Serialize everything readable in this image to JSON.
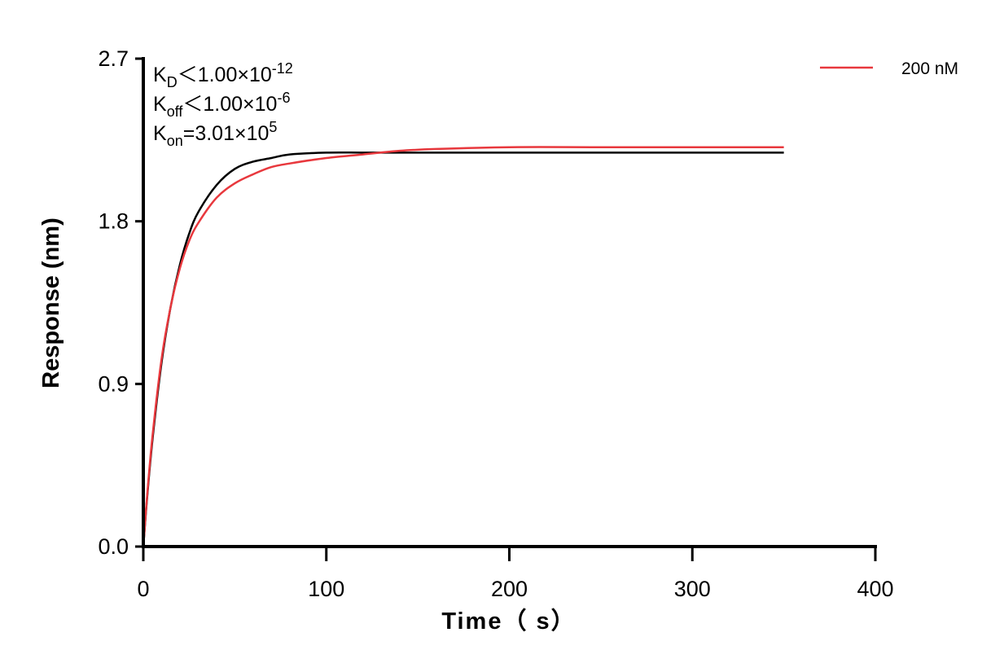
{
  "chart_data": {
    "type": "line",
    "title": "",
    "xlabel": "Time（ s）",
    "ylabel": "Response (nm)",
    "xlim": [
      0,
      400
    ],
    "ylim": [
      0,
      2.7
    ],
    "xticks": [
      "0",
      "100",
      "200",
      "300",
      "400"
    ],
    "yticks": [
      "0.0",
      "0.9",
      "1.8",
      "2.7"
    ],
    "grid": false,
    "legend_position": "top-right",
    "annotations": [
      {
        "main": "K",
        "sub": "D",
        "rest": "＜1.00×10",
        "sup": "-12"
      },
      {
        "main": "K",
        "sub": "off",
        "rest": "＜1.00×10",
        "sup": "-6"
      },
      {
        "main": "K",
        "sub": "on",
        "rest": "=3.01×10",
        "sup": "5"
      }
    ],
    "series": [
      {
        "name": "200 nM",
        "color": "#e8383d",
        "x": [
          0,
          2,
          5,
          10,
          15,
          20,
          25,
          30,
          40,
          50,
          60,
          70,
          80,
          100,
          120,
          140,
          160,
          200,
          250,
          300,
          350
        ],
        "y": [
          0,
          0.27,
          0.61,
          1.04,
          1.33,
          1.54,
          1.69,
          1.79,
          1.93,
          2.01,
          2.06,
          2.1,
          2.12,
          2.15,
          2.17,
          2.19,
          2.2,
          2.21,
          2.21,
          2.21,
          2.21
        ]
      },
      {
        "color": "#000000",
        "x": [
          0,
          2,
          5,
          10,
          15,
          20,
          25,
          30,
          40,
          50,
          60,
          70,
          80,
          100,
          120,
          140,
          160,
          200,
          250,
          300,
          350
        ],
        "y": [
          0,
          0.26,
          0.59,
          1.02,
          1.33,
          1.56,
          1.73,
          1.85,
          2.0,
          2.09,
          2.13,
          2.15,
          2.17,
          2.18,
          2.18,
          2.18,
          2.18,
          2.18,
          2.18,
          2.18,
          2.18
        ]
      }
    ]
  }
}
